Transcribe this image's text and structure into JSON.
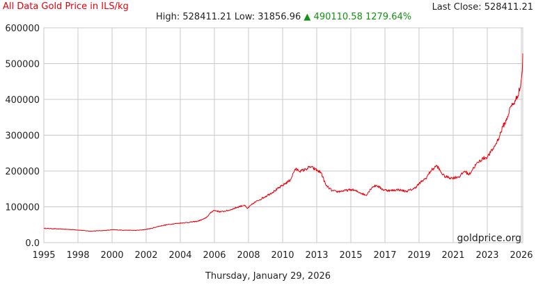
{
  "header": {
    "title": "All Data Gold Price in ILS/kg",
    "last_close": "Last Close: 528411.21",
    "high_low": "High: 528411.21 Low: 31856.96",
    "change_arrow": "▲",
    "change": "490110.58 1279.64%"
  },
  "footer": {
    "date": "Thursday, January 29, 2026"
  },
  "watermark": "goldprice.org",
  "colors": {
    "line": "#e8000b",
    "grid": "#c8c8c8",
    "up": "#149114"
  },
  "chart_data": {
    "type": "line",
    "title": "All Data Gold Price in ILS/kg",
    "xlabel": "",
    "ylabel": "",
    "xlim": [
      1995.0,
      2026.08
    ],
    "ylim": [
      0,
      600000
    ],
    "x_ticks": [
      "1995",
      "1998",
      "2000",
      "2002",
      "2004",
      "2006",
      "2008",
      "2010",
      "2013",
      "2015",
      "2017",
      "2019",
      "2021",
      "2023",
      "2026"
    ],
    "y_ticks": [
      "600000",
      "500000",
      "400000",
      "300000",
      "200000",
      "100000",
      "0.0"
    ],
    "grid": true,
    "series": [
      {
        "x": [
          1995.0,
          1996.0,
          1997.0,
          1997.5,
          1998.0,
          1999.0,
          1999.5,
          2000.0,
          2001.0,
          2001.5,
          2002.0,
          2002.5,
          2003.0,
          2003.5,
          2004.0,
          2004.5,
          2005.0,
          2005.5,
          2005.8,
          2006.0,
          2006.5,
          2007.0,
          2007.5,
          2008.0,
          2008.2,
          2008.6,
          2009.0,
          2009.5,
          2010.0,
          2010.5,
          2011.0,
          2011.3,
          2011.7,
          2012.0,
          2012.3,
          2012.6,
          2013.0,
          2013.3,
          2013.7,
          2014.0,
          2014.5,
          2015.0,
          2015.5,
          2015.9,
          2016.3,
          2016.6,
          2017.0,
          2017.5,
          2018.0,
          2018.5,
          2019.0,
          2019.5,
          2019.8,
          2020.1,
          2020.5,
          2020.8,
          2021.0,
          2021.5,
          2022.0,
          2022.3,
          2022.6,
          2022.9,
          2023.2,
          2023.5,
          2023.8,
          2024.2,
          2024.5,
          2024.8,
          2025.0,
          2025.3,
          2025.6,
          2025.9,
          2026.0,
          2026.05,
          2026.08
        ],
        "y": [
          40000,
          38000,
          36000,
          34000,
          32000,
          34000,
          36000,
          35000,
          34000,
          36000,
          40000,
          46000,
          50000,
          53000,
          55000,
          57000,
          60000,
          68000,
          82000,
          90000,
          86000,
          90000,
          98000,
          105000,
          95000,
          110000,
          120000,
          132000,
          145000,
          160000,
          175000,
          205000,
          200000,
          205000,
          212000,
          205000,
          195000,
          160000,
          145000,
          142000,
          145000,
          148000,
          140000,
          132000,
          155000,
          160000,
          148000,
          145000,
          148000,
          143000,
          150000,
          170000,
          180000,
          200000,
          215000,
          195000,
          185000,
          180000,
          185000,
          200000,
          190000,
          210000,
          225000,
          235000,
          240000,
          265000,
          290000,
          325000,
          340000,
          380000,
          395000,
          430000,
          460000,
          480000,
          528411.21
        ]
      }
    ]
  }
}
